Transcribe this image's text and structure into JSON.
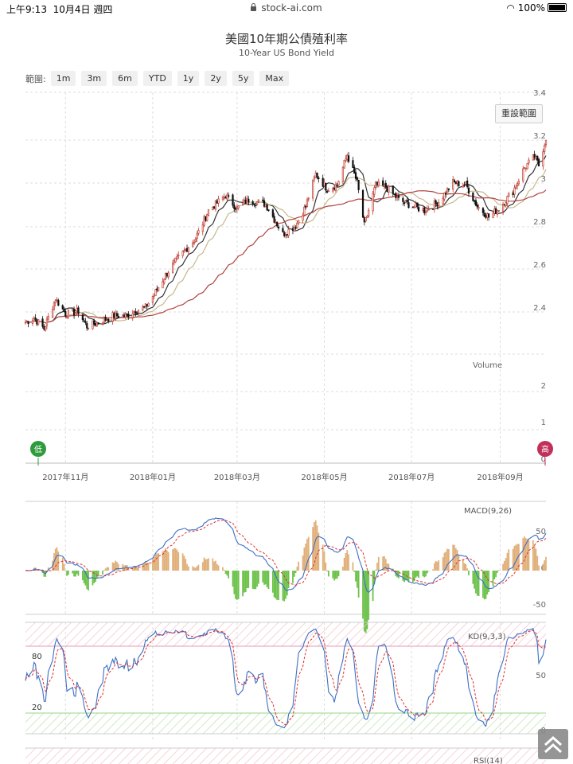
{
  "status_bar": {
    "time": "上午9:13",
    "date": "10月4日 週四",
    "url": "stock-ai.com",
    "battery": "100%"
  },
  "header": {
    "title": "美國10年期公債殖利率",
    "subtitle": "10-Year US Bond Yield"
  },
  "range_selector": {
    "label": "範圍:",
    "buttons": [
      "1m",
      "3m",
      "6m",
      "YTD",
      "1y",
      "2y",
      "5y",
      "Max"
    ]
  },
  "reset_button": "重設範圍",
  "markers": {
    "low": "低",
    "high": "高"
  },
  "colors": {
    "up": "#c0392b",
    "down": "#111111",
    "ma_short": "#333333",
    "ma_mid": "#c6b88c",
    "ma_long": "#b0413e",
    "macd": "#3d6fc4",
    "signal": "#e03030",
    "hist_pos": "#e0b07a",
    "hist_neg": "#6cc24a",
    "k": "#3d6fc4",
    "d": "#e03030",
    "low_marker": "#2e9b3c",
    "high_marker": "#c0305a"
  },
  "chart_data": [
    {
      "type": "candlestick",
      "title": "美國10年期公債殖利率",
      "subtitle": "10-Year US Bond Yield",
      "ylim": [
        0,
        3.4
      ],
      "price_ylim": [
        2.2,
        3.4
      ],
      "yticks": [
        "3.4",
        "3.2",
        "3",
        "2.8",
        "2.6",
        "2.4"
      ],
      "volume_label": "Volume",
      "volume_ticks": [
        "2",
        "1",
        "0"
      ],
      "x_ticks": [
        "2017年11月",
        "2018年01月",
        "2018年03月",
        "2018年05月",
        "2018年07月",
        "2018年09月"
      ],
      "x_range": [
        "2017-10-04",
        "2018-10-03"
      ],
      "close_anchors": [
        {
          "date": "2017-10-04",
          "value": 2.33
        },
        {
          "date": "2017-10-10",
          "value": 2.35
        },
        {
          "date": "2017-10-17",
          "value": 2.3
        },
        {
          "date": "2017-10-25",
          "value": 2.44
        },
        {
          "date": "2017-11-01",
          "value": 2.37
        },
        {
          "date": "2017-11-10",
          "value": 2.38
        },
        {
          "date": "2017-11-16",
          "value": 2.31
        },
        {
          "date": "2017-11-28",
          "value": 2.34
        },
        {
          "date": "2017-12-04",
          "value": 2.36
        },
        {
          "date": "2017-12-13",
          "value": 2.36
        },
        {
          "date": "2017-12-18",
          "value": 2.38
        },
        {
          "date": "2017-12-27",
          "value": 2.4
        },
        {
          "date": "2018-01-02",
          "value": 2.46
        },
        {
          "date": "2018-01-10",
          "value": 2.55
        },
        {
          "date": "2018-01-19",
          "value": 2.63
        },
        {
          "date": "2018-01-31",
          "value": 2.72
        },
        {
          "date": "2018-02-09",
          "value": 2.85
        },
        {
          "date": "2018-02-21",
          "value": 2.92
        },
        {
          "date": "2018-03-01",
          "value": 2.86
        },
        {
          "date": "2018-03-09",
          "value": 2.9
        },
        {
          "date": "2018-03-21",
          "value": 2.88
        },
        {
          "date": "2018-04-02",
          "value": 2.74
        },
        {
          "date": "2018-04-11",
          "value": 2.78
        },
        {
          "date": "2018-04-18",
          "value": 2.87
        },
        {
          "date": "2018-04-25",
          "value": 3.02
        },
        {
          "date": "2018-05-03",
          "value": 2.95
        },
        {
          "date": "2018-05-10",
          "value": 2.97
        },
        {
          "date": "2018-05-17",
          "value": 3.11
        },
        {
          "date": "2018-05-24",
          "value": 2.98
        },
        {
          "date": "2018-05-29",
          "value": 2.78
        },
        {
          "date": "2018-06-06",
          "value": 2.97
        },
        {
          "date": "2018-06-13",
          "value": 2.96
        },
        {
          "date": "2018-06-22",
          "value": 2.9
        },
        {
          "date": "2018-07-02",
          "value": 2.87
        },
        {
          "date": "2018-07-10",
          "value": 2.85
        },
        {
          "date": "2018-07-20",
          "value": 2.89
        },
        {
          "date": "2018-07-30",
          "value": 2.98
        },
        {
          "date": "2018-08-08",
          "value": 2.97
        },
        {
          "date": "2018-08-16",
          "value": 2.87
        },
        {
          "date": "2018-08-24",
          "value": 2.82
        },
        {
          "date": "2018-08-31",
          "value": 2.86
        },
        {
          "date": "2018-09-10",
          "value": 2.94
        },
        {
          "date": "2018-09-18",
          "value": 3.05
        },
        {
          "date": "2018-09-25",
          "value": 3.1
        },
        {
          "date": "2018-09-28",
          "value": 3.06
        },
        {
          "date": "2018-10-03",
          "value": 3.19
        }
      ],
      "moving_averages": [
        "short",
        "mid",
        "long"
      ]
    },
    {
      "type": "line",
      "title": "MACD(9,26)",
      "ylim": [
        -50,
        50
      ],
      "yticks": [
        "50",
        "0",
        "-50"
      ],
      "series": [
        "MACD",
        "Signal",
        "Histogram"
      ]
    },
    {
      "type": "line",
      "title": "KD(9,3,3)",
      "ylim": [
        0,
        100
      ],
      "yticks_left": [
        "80",
        "20"
      ],
      "yticks_right": [
        "50",
        "0"
      ],
      "series": [
        "K",
        "D"
      ]
    },
    {
      "type": "line",
      "title": "RSI(14)"
    }
  ]
}
